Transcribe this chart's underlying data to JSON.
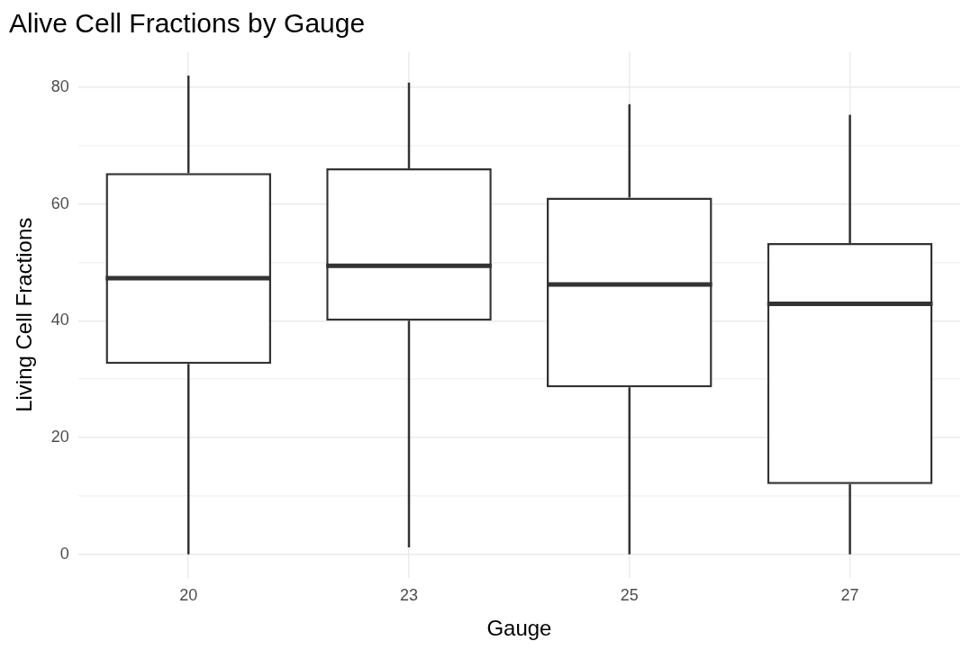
{
  "chart_data": {
    "type": "box",
    "title": "Alive Cell Fractions by Gauge",
    "xlabel": "Gauge",
    "ylabel": "Living Cell Fractions",
    "categories": [
      "20",
      "23",
      "25",
      "27"
    ],
    "color": "#333333",
    "boxes": [
      {
        "low": 0,
        "q1": 32.6,
        "median": 47.3,
        "q3": 65.3,
        "high": 82
      },
      {
        "low": 1.2,
        "q1": 40,
        "median": 49.4,
        "q3": 66.1,
        "high": 80.8
      },
      {
        "low": 0,
        "q1": 28.6,
        "median": 46.2,
        "q3": 61.1,
        "high": 77.1
      },
      {
        "low": 0,
        "q1": 12,
        "median": 42.9,
        "q3": 53.3,
        "high": 75.3
      }
    ],
    "ylim": [
      -4,
      86
    ],
    "yticks": [
      0,
      {
        "value": 10,
        "label": null
      },
      20,
      {
        "value": 30,
        "label": null
      },
      40,
      {
        "value": 50,
        "label": null
      },
      60,
      {
        "value": 70,
        "label": null
      },
      80
    ],
    "grid": true,
    "legend": false
  }
}
